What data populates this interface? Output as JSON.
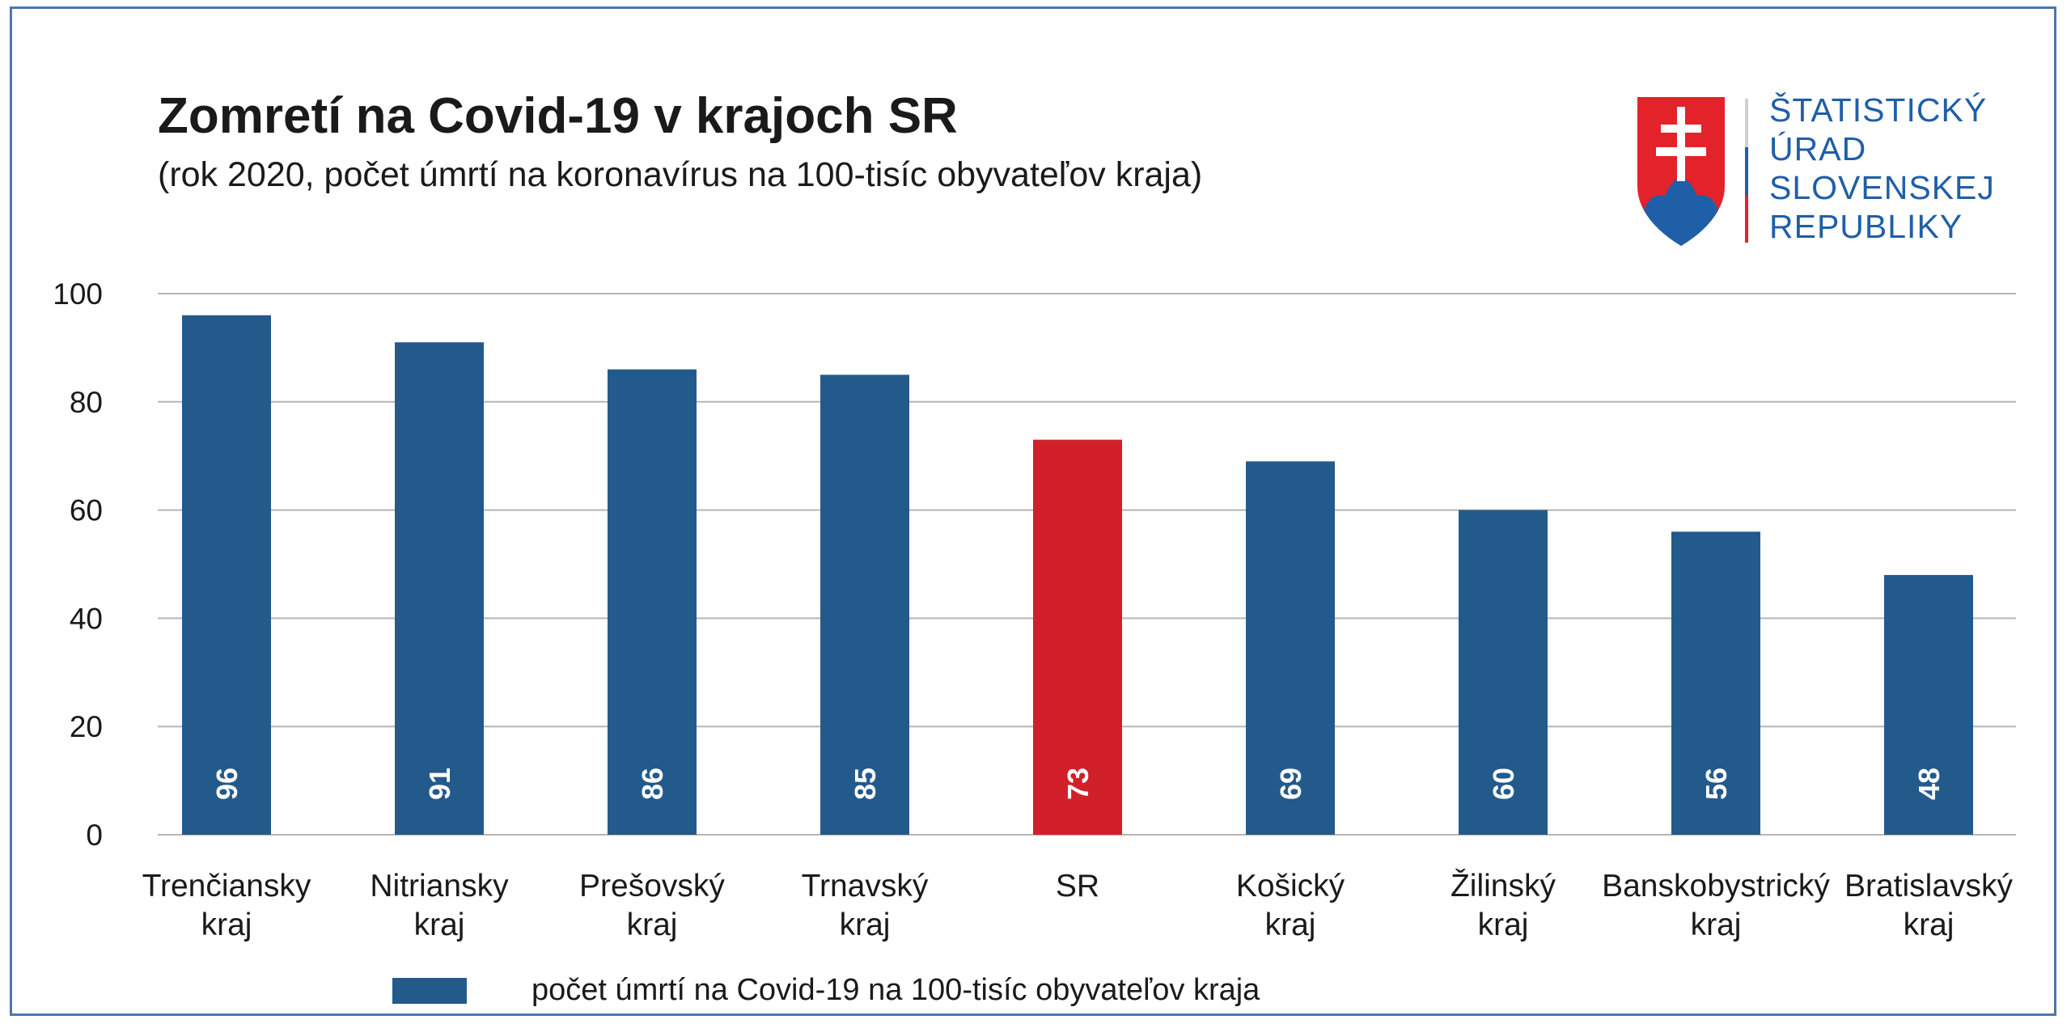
{
  "header": {
    "title": "Zomretí na Covid-19 v krajoch SR",
    "subtitle": "(rok 2020, počet úmrtí na koronavírus na 100-tisíc obyvateľov kraja)"
  },
  "logo": {
    "lines": [
      "ŠTATISTICKÝ",
      "ÚRAD",
      "SLOVENSKEJ",
      "REPUBLIKY"
    ]
  },
  "colors": {
    "bar": "#235a8c",
    "highlight": "#d2202a",
    "grid": "#b5b5b5",
    "frame": "#4a78ad"
  },
  "chart_data": {
    "type": "bar",
    "title": "Zomretí na Covid-19 v krajoch SR",
    "categories": [
      [
        "Trenčiansky",
        "kraj"
      ],
      [
        "Nitriansky",
        "kraj"
      ],
      [
        "Prešovský",
        "kraj"
      ],
      [
        "Trnavský",
        "kraj"
      ],
      [
        "SR"
      ],
      [
        "Košický",
        "kraj"
      ],
      [
        "Žilinský",
        "kraj"
      ],
      [
        "Banskobystrický",
        "kraj"
      ],
      [
        "Bratislavský",
        "kraj"
      ]
    ],
    "values": [
      96,
      91,
      86,
      85,
      73,
      69,
      60,
      56,
      48
    ],
    "highlight_index": 4,
    "data_labels": [
      "96",
      "91",
      "86",
      "85",
      "73",
      "69",
      "60",
      "56",
      "48"
    ],
    "yticks": [
      "0",
      "20",
      "40",
      "60",
      "80",
      "100"
    ],
    "ylim": [
      0,
      100
    ],
    "grid": true,
    "xlabel": "",
    "ylabel": "",
    "legend": {
      "label": "počet úmrtí na Covid-19 na 100-tisíc obyvateľov kraja",
      "placement": "bottom"
    }
  }
}
